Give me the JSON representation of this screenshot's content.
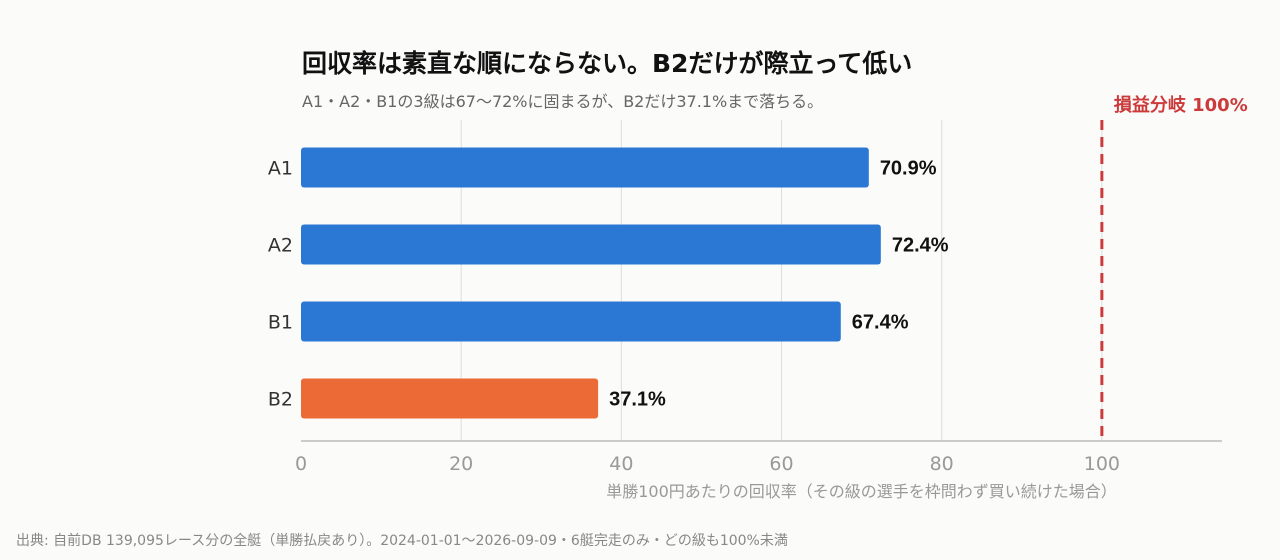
{
  "chart_data": {
    "type": "bar",
    "orientation": "horizontal",
    "title": "回収率は素直な順にならない。B2だけが際立って低い",
    "subtitle": "A1・A2・B1の3級は67〜72%に固まるが、B2だけ37.1%まで落ちる。",
    "xlabel": "単勝100円あたりの回収率（その級の選手を枠問わず買い続けた場合）",
    "ylabel": "",
    "categories": [
      "A1",
      "A2",
      "B1",
      "B2"
    ],
    "values": [
      70.9,
      72.4,
      67.4,
      37.1
    ],
    "value_labels": [
      "70.9%",
      "72.4%",
      "67.4%",
      "37.1%"
    ],
    "bar_colors": [
      "#2b78d4",
      "#2b78d4",
      "#2b78d4",
      "#eb6a35"
    ],
    "xlim": [
      0,
      115
    ],
    "xticks": [
      0,
      20,
      40,
      60,
      80,
      100
    ],
    "xtick_labels": [
      "0",
      "20",
      "40",
      "60",
      "80",
      "100"
    ],
    "grid": true,
    "legend": "none",
    "reference_line": {
      "value": 100,
      "label": "損益分岐 100%",
      "color": "#cc3b3b",
      "style": "dashed"
    },
    "footnote": "出典: 自前DB 139,095レース分の全艇（単勝払戻あり）。2024-01-01〜2026-09-09・6艇完走のみ・どの級も100%未満"
  }
}
